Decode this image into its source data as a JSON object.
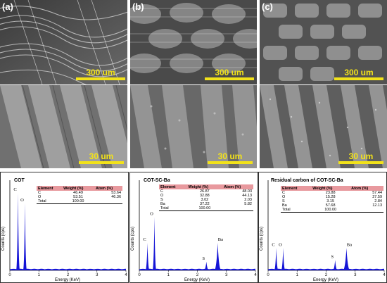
{
  "figure": {
    "panels": [
      {
        "label": "(a)",
        "scale": "300 um"
      },
      {
        "label": "(b)",
        "scale": "300 um"
      },
      {
        "label": "(c)",
        "scale": "300 um"
      }
    ],
    "zoom_scales": [
      "30 um",
      "30 um",
      "30 um"
    ]
  },
  "colors": {
    "spectrum": "#1515d6",
    "table_header": "#e8999e",
    "scale_bar": "#f2e21a"
  },
  "chart_data": [
    {
      "type": "area",
      "title": "COT",
      "xlabel": "Energy (KeV)",
      "ylabel": "Counts (cps)",
      "xlim": [
        0,
        4
      ],
      "x_ticks": [
        "0",
        "1",
        "2",
        "3",
        "4"
      ],
      "peaks": [
        {
          "element": "C",
          "x": 0.28,
          "height": 0.9
        },
        {
          "element": "O",
          "x": 0.52,
          "height": 0.78
        }
      ],
      "table": {
        "headers": [
          "Element",
          "Weight (%)",
          "Atom (%)"
        ],
        "rows": [
          [
            "C",
            "46.49",
            "53.64"
          ],
          [
            "O",
            "53.51",
            "46.36"
          ],
          [
            "Total",
            "100.00",
            ""
          ]
        ]
      }
    },
    {
      "type": "area",
      "title": "COT-SC-Ba",
      "xlabel": "Energy (KeV)",
      "ylabel": "Counts (cps)",
      "xlim": [
        0,
        4
      ],
      "x_ticks": [
        "0",
        "1",
        "2",
        "3",
        "4"
      ],
      "peaks": [
        {
          "element": "C",
          "x": 0.28,
          "height": 0.32
        },
        {
          "element": "O",
          "x": 0.52,
          "height": 0.62
        },
        {
          "element": "S",
          "x": 2.31,
          "height": 0.1
        },
        {
          "element": "Ba",
          "x": 2.7,
          "height": 0.32
        }
      ],
      "table": {
        "headers": [
          "Element",
          "Weight (%)",
          "Atom (%)"
        ],
        "rows": [
          [
            "C",
            "26.87",
            "48.03"
          ],
          [
            "O",
            "32.88",
            "44.13"
          ],
          [
            "S",
            "3.02",
            "2.03"
          ],
          [
            "Ba",
            "37.22",
            "5.82"
          ],
          [
            "Total",
            "100.00",
            ""
          ]
        ]
      }
    },
    {
      "type": "area",
      "title": "Residual carbon of COT-SC-Ba",
      "xlabel": "Energy (KeV)",
      "ylabel": "Counts (cps)",
      "xlim": [
        0,
        4
      ],
      "x_ticks": [
        "0",
        "1",
        "2",
        "3",
        "4"
      ],
      "peaks": [
        {
          "element": "C",
          "x": 0.28,
          "height": 0.26
        },
        {
          "element": "O",
          "x": 0.52,
          "height": 0.26
        },
        {
          "element": "S",
          "x": 2.31,
          "height": 0.12
        },
        {
          "element": "Ba",
          "x": 2.7,
          "height": 0.26
        }
      ],
      "table": {
        "headers": [
          "Element",
          "Weight (%)",
          "Atom (%)"
        ],
        "rows": [
          [
            "C",
            "23.88",
            "57.44"
          ],
          [
            "O",
            "15.28",
            "27.59"
          ],
          [
            "S",
            "3.15",
            "2.84"
          ],
          [
            "Ba",
            "57.68",
            "12.13"
          ],
          [
            "Total",
            "100.00",
            ""
          ]
        ]
      }
    }
  ]
}
